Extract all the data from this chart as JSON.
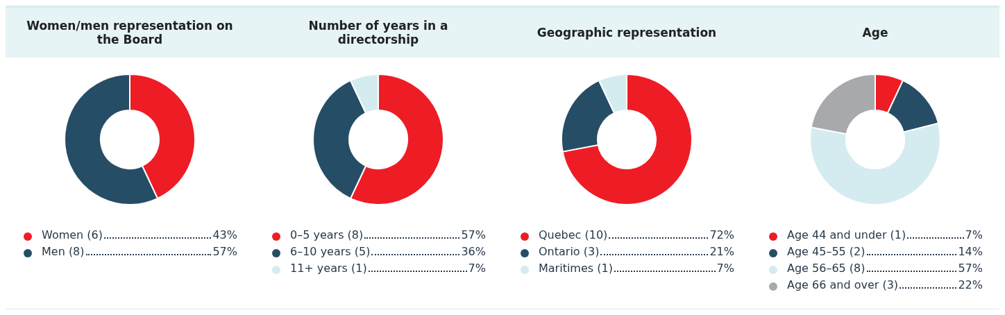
{
  "chart_data": [
    {
      "type": "donut",
      "title": "Women/men representation on the Board",
      "categories": [
        "Women (6)",
        "Men (8)"
      ],
      "values": [
        43,
        57
      ],
      "colors": [
        "#ee1c25",
        "#264d66"
      ],
      "value_labels": [
        "43%",
        "57%"
      ],
      "legend": "bottom"
    },
    {
      "type": "donut",
      "title": "Number of years in a directorship",
      "categories": [
        "0–5 years (8)",
        "6–10 years (5)",
        "11+ years (1)"
      ],
      "values": [
        57,
        36,
        7
      ],
      "colors": [
        "#ee1c25",
        "#264d66",
        "#d4ecef"
      ],
      "value_labels": [
        "57%",
        "36%",
        "7%"
      ],
      "legend": "bottom"
    },
    {
      "type": "donut",
      "title": "Geographic representation",
      "categories": [
        "Quebec (10)",
        "Ontario (3)",
        "Maritimes (1)"
      ],
      "values": [
        72,
        21,
        7
      ],
      "colors": [
        "#ee1c25",
        "#264d66",
        "#d4ecef"
      ],
      "value_labels": [
        "72%",
        "21%",
        "7%"
      ],
      "legend": "bottom"
    },
    {
      "type": "donut",
      "title": "Age",
      "categories": [
        "Age 44 and under (1)",
        "Age 45–55 (2)",
        "Age 56–65 (8)",
        "Age 66 and over (3)"
      ],
      "values": [
        7,
        14,
        57,
        22
      ],
      "colors": [
        "#ee1c25",
        "#264d66",
        "#d4ecef",
        "#a7a9ac"
      ],
      "value_labels": [
        "7%",
        "14%",
        "57%",
        "22%"
      ],
      "legend": "bottom"
    }
  ]
}
